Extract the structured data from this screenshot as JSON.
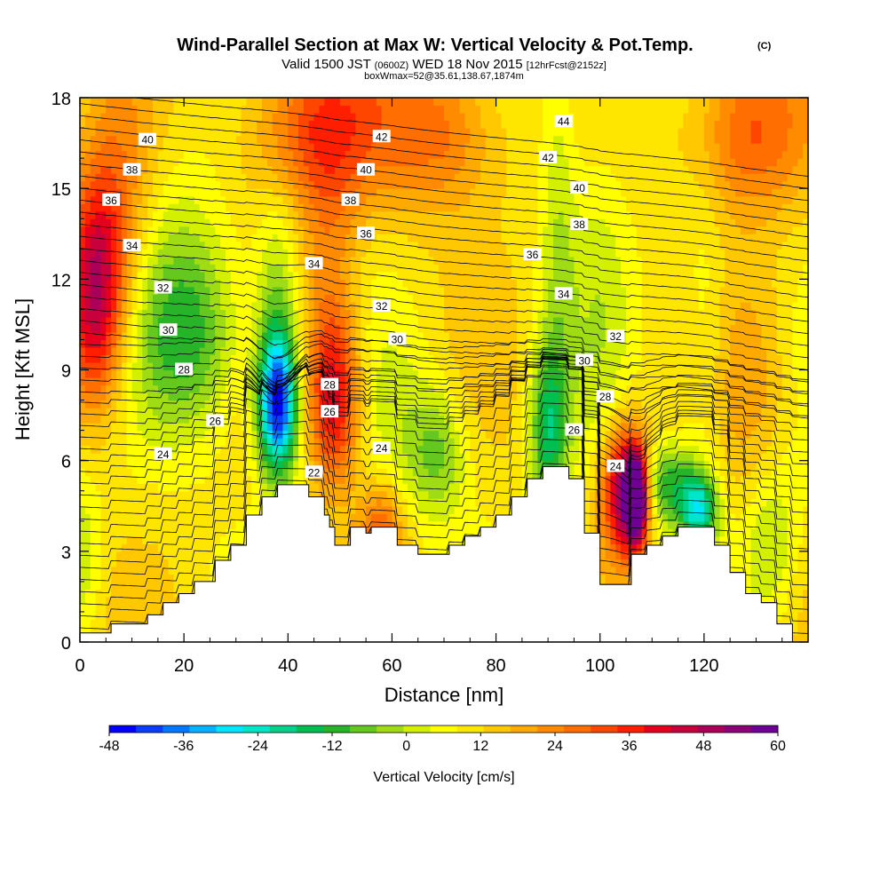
{
  "chart_data": {
    "type": "heatmap",
    "title": "Wind-Parallel Section at Max W: Vertical Velocity & Pot.Temp.",
    "title_mark": "(C)",
    "subtitle_parts": [
      "Valid 1500 JST",
      "(0600Z)",
      "WED 18 Nov 2015",
      "[12hrFcst@2152z]"
    ],
    "box_note": "boxWmax=52@35.61,138.67,1874m",
    "xlabel": "Distance [nm]",
    "ylabel": "Height [Kft MSL]",
    "xlim": [
      0,
      140
    ],
    "ylim": [
      0,
      18
    ],
    "xticks": [
      0,
      20,
      40,
      60,
      80,
      100,
      120
    ],
    "yticks": [
      0,
      3,
      6,
      9,
      12,
      15,
      18
    ],
    "colorbar": {
      "label": "Vertical Velocity [cm/s]",
      "ticks": [
        -48,
        -36,
        -24,
        -12,
        0,
        12,
        24,
        36,
        48,
        60
      ],
      "range": [
        -48,
        60
      ],
      "colors": [
        "#0000ff",
        "#0a3cff",
        "#0078ff",
        "#00b4ff",
        "#00e6ff",
        "#00e6c8",
        "#00d28c",
        "#00be50",
        "#28b428",
        "#64c81e",
        "#a0dc14",
        "#d2f000",
        "#ffff00",
        "#ffe600",
        "#ffc800",
        "#ffaa00",
        "#ff8c00",
        "#ff6e00",
        "#ff4600",
        "#ff1e00",
        "#e6001e",
        "#c8003c",
        "#aa005a",
        "#8c0078",
        "#6e0096"
      ]
    },
    "terrain": [
      [
        0,
        0.3
      ],
      [
        6,
        0.3
      ],
      [
        6,
        0.6
      ],
      [
        13,
        0.6
      ],
      [
        13,
        0.9
      ],
      [
        16,
        0.9
      ],
      [
        16,
        1.3
      ],
      [
        19,
        1.3
      ],
      [
        19,
        1.6
      ],
      [
        22,
        1.6
      ],
      [
        22,
        2.0
      ],
      [
        26,
        2.0
      ],
      [
        26,
        2.7
      ],
      [
        29,
        2.7
      ],
      [
        29,
        3.2
      ],
      [
        32,
        3.2
      ],
      [
        32,
        4.2
      ],
      [
        35,
        4.2
      ],
      [
        35,
        4.8
      ],
      [
        38,
        4.8
      ],
      [
        38,
        5.2
      ],
      [
        44,
        5.2
      ],
      [
        44,
        4.8
      ],
      [
        47,
        4.8
      ],
      [
        47,
        4.2
      ],
      [
        48,
        4.2
      ],
      [
        48,
        3.8
      ],
      [
        49,
        3.8
      ],
      [
        49,
        3.2
      ],
      [
        52,
        3.2
      ],
      [
        52,
        3.8
      ],
      [
        55,
        3.8
      ],
      [
        55,
        3.6
      ],
      [
        56,
        3.6
      ],
      [
        56,
        3.8
      ],
      [
        61,
        3.8
      ],
      [
        61,
        3.2
      ],
      [
        65,
        3.2
      ],
      [
        65,
        2.9
      ],
      [
        71,
        2.9
      ],
      [
        71,
        3.2
      ],
      [
        74,
        3.2
      ],
      [
        74,
        3.5
      ],
      [
        77,
        3.5
      ],
      [
        77,
        3.8
      ],
      [
        80,
        3.8
      ],
      [
        80,
        4.2
      ],
      [
        83,
        4.2
      ],
      [
        83,
        4.8
      ],
      [
        86,
        4.8
      ],
      [
        86,
        5.4
      ],
      [
        89,
        5.4
      ],
      [
        89,
        5.8
      ],
      [
        94,
        5.8
      ],
      [
        94,
        5.4
      ],
      [
        97,
        5.4
      ],
      [
        97,
        3.6
      ],
      [
        100,
        3.6
      ],
      [
        100,
        1.9
      ],
      [
        106,
        1.9
      ],
      [
        106,
        2.9
      ],
      [
        109,
        2.9
      ],
      [
        109,
        3.2
      ],
      [
        112,
        3.2
      ],
      [
        112,
        3.5
      ],
      [
        115,
        3.5
      ],
      [
        115,
        3.8
      ],
      [
        122,
        3.8
      ],
      [
        122,
        3.2
      ],
      [
        125,
        3.2
      ],
      [
        125,
        2.3
      ],
      [
        128,
        2.3
      ],
      [
        128,
        1.6
      ],
      [
        131,
        1.6
      ],
      [
        131,
        1.3
      ],
      [
        134,
        1.3
      ],
      [
        134,
        0.6
      ],
      [
        137,
        0.6
      ],
      [
        137,
        0
      ]
    ],
    "w_features": [
      {
        "x": 3,
        "z": 11.5,
        "w": 38,
        "sx": 4,
        "sz": 2.6
      },
      {
        "x": 8,
        "z": 14.5,
        "w": 14,
        "sx": 5,
        "sz": 3
      },
      {
        "x": 22,
        "z": 10,
        "w": -18,
        "sx": 7,
        "sz": 2.2
      },
      {
        "x": 16,
        "z": 13,
        "w": -8,
        "sx": 8,
        "sz": 3
      },
      {
        "x": 38,
        "z": 7.8,
        "w": -46,
        "sx": 2.6,
        "sz": 1.5
      },
      {
        "x": 38,
        "z": 10,
        "w": -20,
        "sx": 3,
        "sz": 3
      },
      {
        "x": 49,
        "z": 8,
        "w": 30,
        "sx": 3.5,
        "sz": 2
      },
      {
        "x": 48,
        "z": 12,
        "w": 12,
        "sx": 4,
        "sz": 3
      },
      {
        "x": 63,
        "z": 7,
        "w": -6,
        "sx": 6,
        "sz": 2
      },
      {
        "x": 69,
        "z": 6.2,
        "w": -14,
        "sx": 4,
        "sz": 1.5
      },
      {
        "x": 90,
        "z": 7,
        "w": -24,
        "sx": 2.5,
        "sz": 2
      },
      {
        "x": 92,
        "z": 14,
        "w": -10,
        "sx": 2.5,
        "sz": 5
      },
      {
        "x": 100,
        "z": 13,
        "w": -6,
        "sx": 4,
        "sz": 5
      },
      {
        "x": 105,
        "z": 5,
        "w": 48,
        "sx": 3,
        "sz": 1.5
      },
      {
        "x": 107,
        "z": 4.8,
        "w": 60,
        "sx": 1.3,
        "sz": 0.9
      },
      {
        "x": 113,
        "z": 5.2,
        "w": -22,
        "sx": 4,
        "sz": 1.0
      },
      {
        "x": 119,
        "z": 4.4,
        "w": -30,
        "sx": 2.5,
        "sz": 0.8
      },
      {
        "x": 120,
        "z": 10,
        "w": -8,
        "sx": 3,
        "sz": 4
      },
      {
        "x": 45,
        "z": 17,
        "w": 22,
        "sx": 10,
        "sz": 2
      },
      {
        "x": 70,
        "z": 17,
        "w": 18,
        "sx": 8,
        "sz": 2
      },
      {
        "x": 128,
        "z": 17,
        "w": 22,
        "sx": 8,
        "sz": 2
      },
      {
        "x": 133,
        "z": 3.5,
        "w": -12,
        "sx": 4,
        "sz": 2
      },
      {
        "x": 58,
        "z": 3.5,
        "w": 20,
        "sx": 3,
        "sz": 1.2
      },
      {
        "x": 0,
        "z": 3,
        "w": -10,
        "sx": 3,
        "sz": 2
      },
      {
        "x": 130,
        "z": 8,
        "w": 8,
        "sx": 5,
        "sz": 3
      }
    ],
    "theta_labels": [
      {
        "text": "40",
        "x": 13,
        "z": 16.6
      },
      {
        "text": "38",
        "x": 10,
        "z": 15.6
      },
      {
        "text": "36",
        "x": 6,
        "z": 14.6
      },
      {
        "text": "34",
        "x": 10,
        "z": 13.1
      },
      {
        "text": "32",
        "x": 16,
        "z": 11.7
      },
      {
        "text": "30",
        "x": 17,
        "z": 10.3
      },
      {
        "text": "28",
        "x": 20,
        "z": 9.0
      },
      {
        "text": "26",
        "x": 26,
        "z": 7.3
      },
      {
        "text": "24",
        "x": 16,
        "z": 6.2
      },
      {
        "text": "42",
        "x": 58,
        "z": 16.7
      },
      {
        "text": "40",
        "x": 55,
        "z": 15.6
      },
      {
        "text": "38",
        "x": 52,
        "z": 14.6
      },
      {
        "text": "36",
        "x": 55,
        "z": 13.5
      },
      {
        "text": "34",
        "x": 45,
        "z": 12.5
      },
      {
        "text": "32",
        "x": 58,
        "z": 11.1
      },
      {
        "text": "30",
        "x": 61,
        "z": 10.0
      },
      {
        "text": "28",
        "x": 48,
        "z": 8.5
      },
      {
        "text": "26",
        "x": 48,
        "z": 7.6
      },
      {
        "text": "24",
        "x": 58,
        "z": 6.4
      },
      {
        "text": "22",
        "x": 45,
        "z": 5.6
      },
      {
        "text": "44",
        "x": 93,
        "z": 17.2
      },
      {
        "text": "42",
        "x": 90,
        "z": 16.0
      },
      {
        "text": "40",
        "x": 96,
        "z": 15.0
      },
      {
        "text": "38",
        "x": 96,
        "z": 13.8
      },
      {
        "text": "36",
        "x": 87,
        "z": 12.8
      },
      {
        "text": "34",
        "x": 93,
        "z": 11.5
      },
      {
        "text": "32",
        "x": 103,
        "z": 10.1
      },
      {
        "text": "30",
        "x": 97,
        "z": 9.3
      },
      {
        "text": "28",
        "x": 101,
        "z": 8.1
      },
      {
        "text": "26",
        "x": 95,
        "z": 7.0
      },
      {
        "text": "24",
        "x": 103,
        "z": 5.8
      }
    ]
  }
}
